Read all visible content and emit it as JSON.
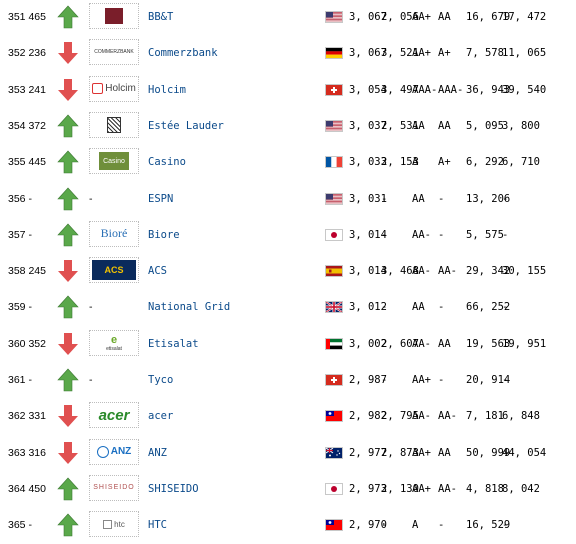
{
  "rows": [
    {
      "rank": "351",
      "prev": "465",
      "trend": "up",
      "logo": "bbt-logo",
      "name": "BB&T",
      "country": "us",
      "brand_value": "3, 067",
      "prev_value": "2, 056",
      "rating": "AA+",
      "prev_rating": "AA",
      "v3": "16, 679",
      "v4": "17, 472"
    },
    {
      "rank": "352",
      "prev": "236",
      "trend": "down",
      "logo": "commerzbank-logo",
      "logo_text": "COMMERZBANK",
      "name": "Commerzbank",
      "country": "de",
      "brand_value": "3, 067",
      "prev_value": "3, 521",
      "rating": "AA+",
      "prev_rating": "A+",
      "v3": "7, 578",
      "v4": "11, 065"
    },
    {
      "rank": "353",
      "prev": "241",
      "trend": "down",
      "logo": "holcim-logo",
      "logo_text": "Holcim",
      "name": "Holcim",
      "country": "ch",
      "brand_value": "3, 054",
      "prev_value": "3, 497",
      "rating": "AAA-",
      "prev_rating": "AAA-",
      "v3": "36, 943",
      "v4": "39, 540"
    },
    {
      "rank": "354",
      "prev": "372",
      "trend": "up",
      "logo": "estee-lauder-logo",
      "name": "Estée Lauder",
      "country": "us",
      "brand_value": "3, 037",
      "prev_value": "2, 531",
      "rating": "AA",
      "prev_rating": "AA",
      "v3": "5, 095",
      "v4": "3, 800"
    },
    {
      "rank": "355",
      "prev": "445",
      "trend": "up",
      "logo": "casino-logo",
      "logo_text": "Casino",
      "name": "Casino",
      "country": "fr",
      "brand_value": "3, 033",
      "prev_value": "2, 153",
      "rating": "A",
      "prev_rating": "A+",
      "v3": "6, 292",
      "v4": "6, 710"
    },
    {
      "rank": "356",
      "prev": "-",
      "trend": "up",
      "logo": "",
      "name": "ESPN",
      "country": "us",
      "brand_value": "3, 031",
      "prev_value": "-",
      "rating": "AA",
      "prev_rating": "-",
      "v3": "13, 206",
      "v4": "-"
    },
    {
      "rank": "357",
      "prev": "-",
      "trend": "up",
      "logo": "biore-logo",
      "logo_text": "Bioré",
      "name": "Biore",
      "country": "jp",
      "brand_value": "3, 014",
      "prev_value": "-",
      "rating": "AA-",
      "prev_rating": "-",
      "v3": "5, 575",
      "v4": "-"
    },
    {
      "rank": "358",
      "prev": "245",
      "trend": "down",
      "logo": "acs-logo",
      "logo_text": "ACS",
      "name": "ACS",
      "country": "es",
      "brand_value": "3, 014",
      "prev_value": "3, 468",
      "rating": "AA-",
      "prev_rating": "AA-",
      "v3": "29, 342",
      "v4": "30, 155"
    },
    {
      "rank": "359",
      "prev": "-",
      "trend": "up",
      "logo": "",
      "name": "National Grid",
      "country": "gb",
      "brand_value": "3, 012",
      "prev_value": "-",
      "rating": "AA",
      "prev_rating": "-",
      "v3": "66, 252",
      "v4": "-"
    },
    {
      "rank": "360",
      "prev": "352",
      "trend": "down",
      "logo": "etisalat-logo",
      "logo_text": "etisalat",
      "name": "Etisalat",
      "country": "ae",
      "brand_value": "3, 002",
      "prev_value": "2, 607",
      "rating": "AA-",
      "prev_rating": "AA",
      "v3": "19, 563",
      "v4": "19, 951"
    },
    {
      "rank": "361",
      "prev": "-",
      "trend": "up",
      "logo": "",
      "name": "Tyco",
      "country": "ch",
      "brand_value": "2, 987",
      "prev_value": "-",
      "rating": "AA+",
      "prev_rating": "-",
      "v3": "20, 914",
      "v4": "-"
    },
    {
      "rank": "362",
      "prev": "331",
      "trend": "down",
      "logo": "acer-logo",
      "logo_text": "acer",
      "name": "acer",
      "country": "tw",
      "brand_value": "2, 982",
      "prev_value": "2, 795",
      "rating": "AA-",
      "prev_rating": "AA-",
      "v3": "7, 181",
      "v4": "6, 848"
    },
    {
      "rank": "363",
      "prev": "316",
      "trend": "down",
      "logo": "anz-logo",
      "logo_text": "ANZ",
      "name": "ANZ",
      "country": "au",
      "brand_value": "2, 977",
      "prev_value": "2, 873",
      "rating": "AA+",
      "prev_rating": "AA",
      "v3": "50, 999",
      "v4": "44, 054"
    },
    {
      "rank": "364",
      "prev": "450",
      "trend": "up",
      "logo": "shiseido-logo",
      "logo_text": "SHISEIDO",
      "name": "SHISEIDO",
      "country": "jp",
      "brand_value": "2, 973",
      "prev_value": "2, 130",
      "rating": "AA+",
      "prev_rating": "AA-",
      "v3": "4, 818",
      "v4": "8, 042"
    },
    {
      "rank": "365",
      "prev": "-",
      "trend": "up",
      "logo": "htc-logo",
      "logo_text": "htc",
      "name": "HTC",
      "country": "tw",
      "brand_value": "2, 970",
      "prev_value": "-",
      "rating": "A",
      "prev_rating": "-",
      "v3": "16, 529",
      "v4": "-"
    }
  ],
  "colors": {
    "up": "#5aa84a",
    "down": "#e05050",
    "name": "#0b4a8a"
  }
}
